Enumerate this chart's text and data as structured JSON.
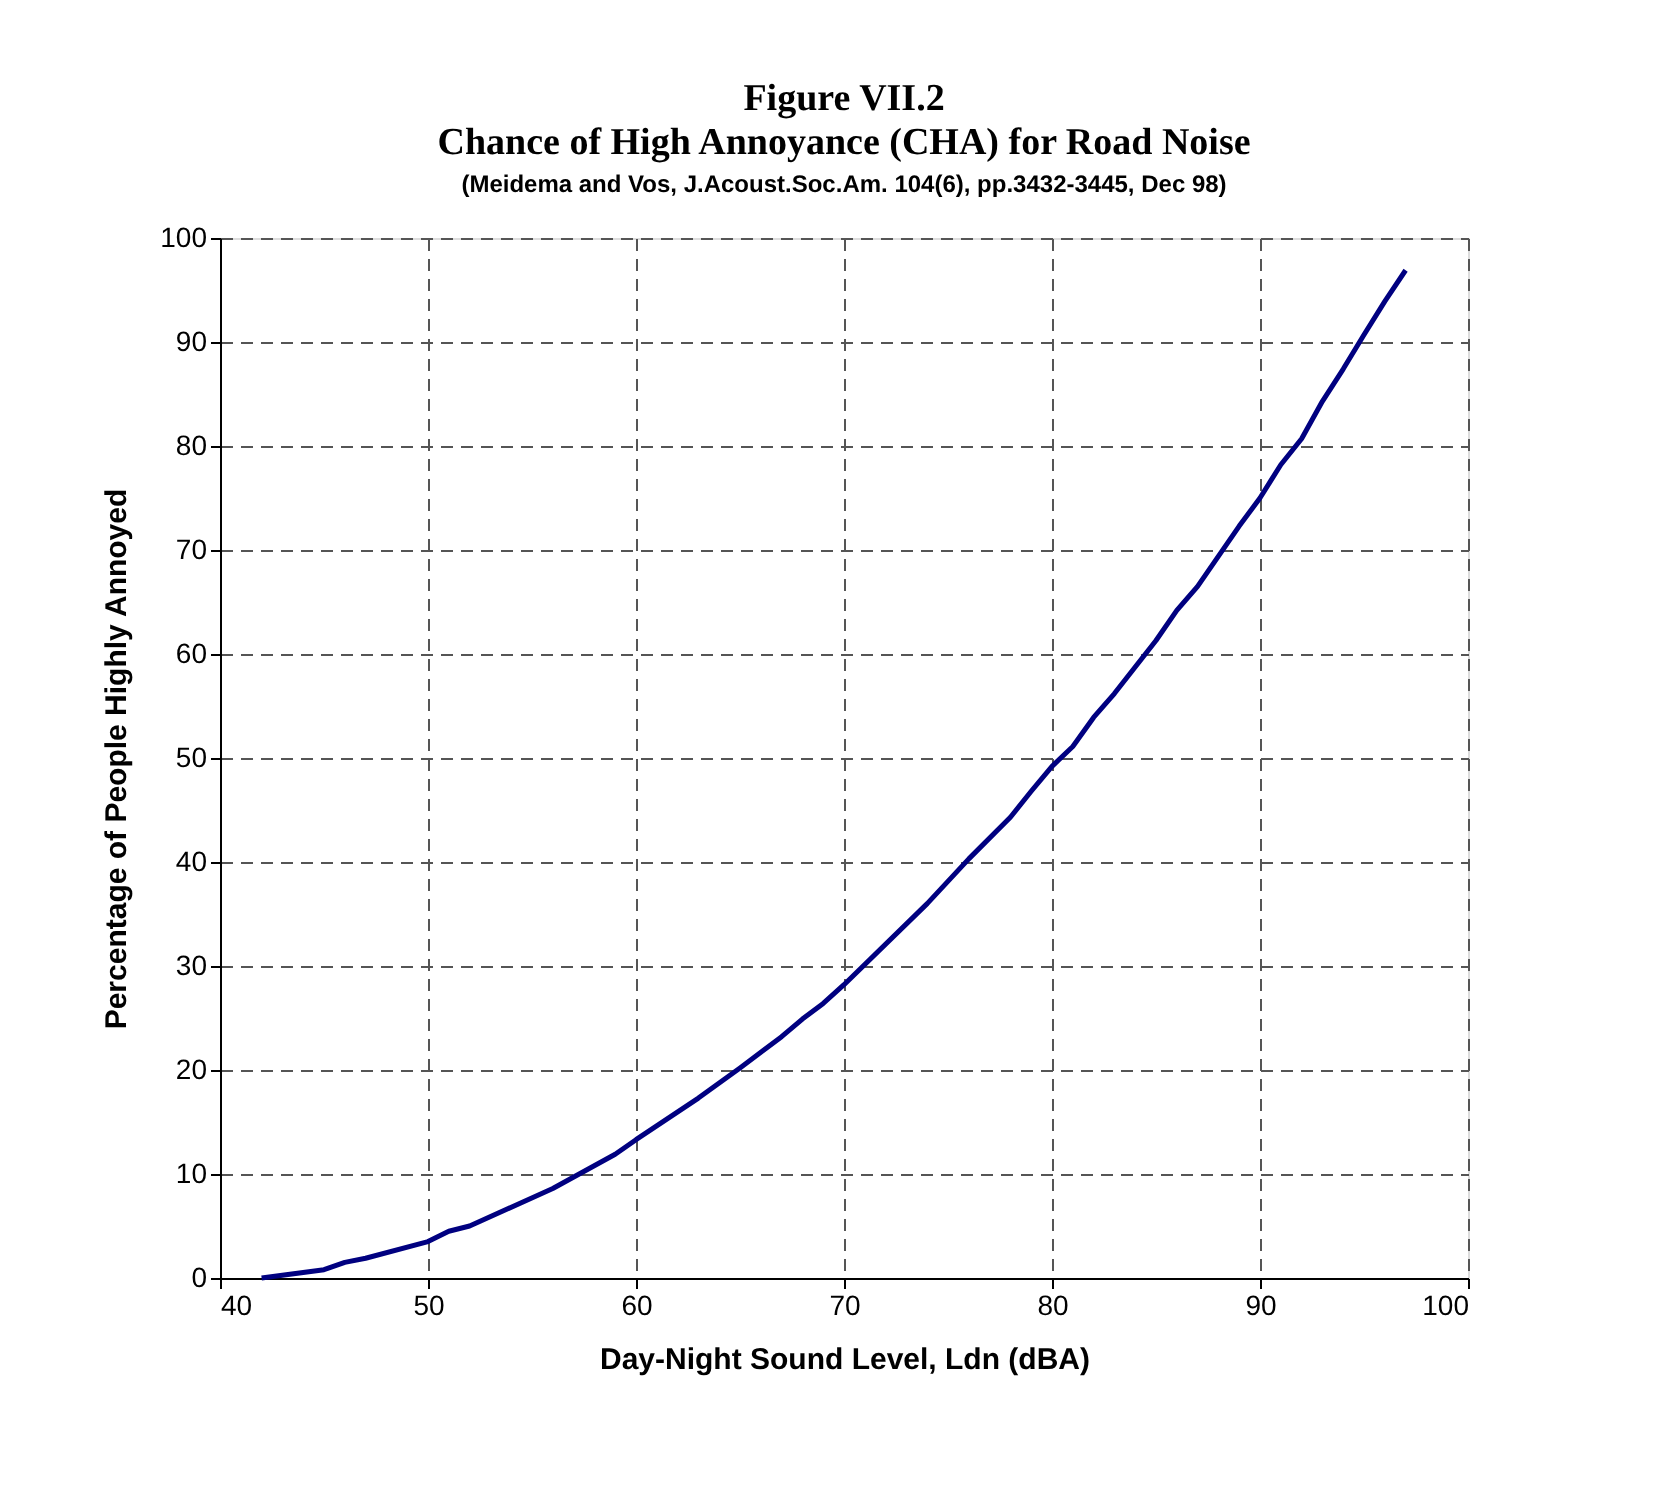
{
  "chart_data": {
    "type": "line",
    "title": "Figure VII.2",
    "subtitle": "Chance of High Annoyance (CHA) for Road Noise",
    "annotations": [
      "(Meidema and Vos, J.Acoust.Soc.Am. 104(6), pp.3432-3445, Dec 98)"
    ],
    "xlabel": "Day-Night Sound Level, Ldn (dBA)",
    "ylabel": "Percentage of People Highly Annoyed",
    "series": [
      {
        "color": "#000080",
        "x": [
          42,
          45,
          46,
          47,
          50,
          51,
          52,
          56,
          59,
          60,
          63,
          65,
          67,
          68,
          69,
          70,
          74,
          76,
          78,
          79,
          80,
          81,
          82,
          83,
          85,
          86,
          87,
          89,
          90,
          91,
          92,
          93,
          94,
          95,
          96,
          97
        ],
        "values": [
          0,
          0.8,
          1.5,
          1.9,
          3.5,
          4.5,
          5.0,
          8.6,
          11.9,
          13.3,
          17.3,
          20.2,
          23.2,
          24.9,
          26.4,
          28.2,
          36,
          40.3,
          44.3,
          46.8,
          49.2,
          51.1,
          53.9,
          56.2,
          61.3,
          64.2,
          66.5,
          72.3,
          75,
          78.2,
          80.7,
          84.3,
          87.4,
          90.7,
          93.9,
          96.9
        ]
      }
    ],
    "xlim": [
      40,
      100
    ],
    "xticks": [
      40,
      50,
      60,
      70,
      80,
      90,
      100
    ],
    "ylim": [
      0,
      100
    ],
    "yticks": [
      0,
      10,
      20,
      30,
      40,
      50,
      60,
      70,
      80,
      90,
      100
    ],
    "grid": true,
    "marker": "none",
    "line_style": "solid",
    "legend": false
  }
}
